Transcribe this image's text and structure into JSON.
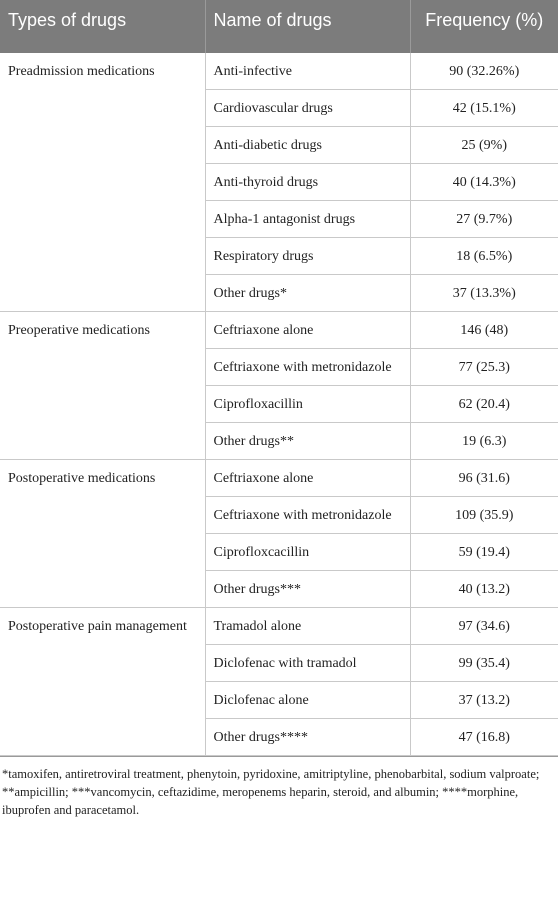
{
  "table": {
    "headers": [
      "Types of drugs",
      "Name of drugs",
      "Frequency (%)"
    ],
    "groups": [
      {
        "type": "Preadmission medications",
        "rows": [
          {
            "name": "Anti-infective",
            "freq": "90 (32.26%)"
          },
          {
            "name": "Cardiovascular drugs",
            "freq": "42 (15.1%)"
          },
          {
            "name": "Anti-diabetic drugs",
            "freq": "25 (9%)"
          },
          {
            "name": "Anti-thyroid drugs",
            "freq": "40 (14.3%)"
          },
          {
            "name": "Alpha-1 antagonist drugs",
            "freq": "27 (9.7%)"
          },
          {
            "name": "Respiratory drugs",
            "freq": "18 (6.5%)"
          },
          {
            "name": "Other drugs*",
            "freq": "37 (13.3%)"
          }
        ]
      },
      {
        "type": "Preoperative medications",
        "rows": [
          {
            "name": "Ceftriaxone alone",
            "freq": "146 (48)"
          },
          {
            "name": "Ceftriaxone with metronidazole",
            "freq": "77 (25.3)"
          },
          {
            "name": "Ciprofloxacillin",
            "freq": "62 (20.4)"
          },
          {
            "name": "Other drugs**",
            "freq": "19 (6.3)"
          }
        ]
      },
      {
        "type": "Postoperative medications",
        "rows": [
          {
            "name": "Ceftriaxone alone",
            "freq": "96 (31.6)"
          },
          {
            "name": "Ceftriaxone with metronidazole",
            "freq": "109 (35.9)"
          },
          {
            "name": "Ciprofloxcacillin",
            "freq": "59 (19.4)"
          },
          {
            "name": "Other drugs***",
            "freq": "40 (13.2)"
          }
        ]
      },
      {
        "type": "Postoperative pain management",
        "rows": [
          {
            "name": "Tramadol alone",
            "freq": "97 (34.6)"
          },
          {
            "name": "Diclofenac with tramadol",
            "freq": "99 (35.4)"
          },
          {
            "name": "Diclofenac alone",
            "freq": "37 (13.2)"
          },
          {
            "name": "Other drugs****",
            "freq": "47 (16.8)"
          }
        ]
      }
    ]
  },
  "footnote": "*tamoxifen, antiretroviral treatment, phenytoin, pyridoxine, amitriptyline, phenobarbital, sodium valproate; **ampicillin; ***vancomycin, ceftazidime, meropenems heparin, steroid, and albumin; ****morphine, ibuprofen and paracetamol."
}
